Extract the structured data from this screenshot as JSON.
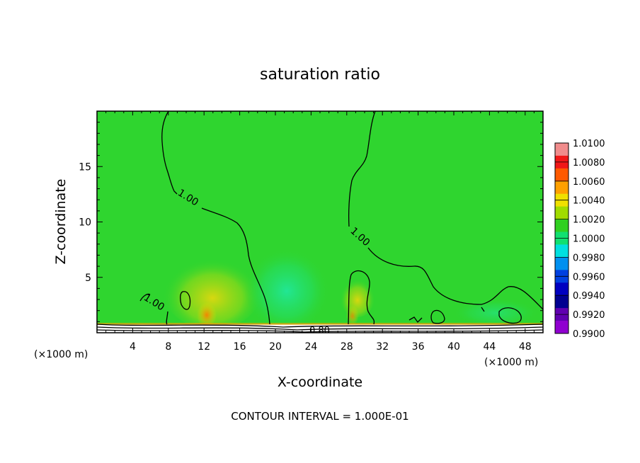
{
  "chart_data": {
    "type": "heatmap",
    "title": "saturation ratio",
    "xlabel": "X-coordinate",
    "ylabel": "Z-coordinate",
    "x_unit_left": "(×1000 m)",
    "x_unit_right": "(×1000 m)",
    "x_ticks": [
      "4",
      "8",
      "12",
      "16",
      "20",
      "24",
      "28",
      "32",
      "36",
      "40",
      "44",
      "48"
    ],
    "y_ticks": [
      "5",
      "10",
      "15"
    ],
    "xlim": [
      0,
      50
    ],
    "ylim": [
      0,
      20
    ],
    "colorbar": {
      "labels": [
        "1.0100",
        "1.0080",
        "1.0060",
        "1.0040",
        "1.0020",
        "1.0000",
        "0.9980",
        "0.9960",
        "0.9940",
        "0.9920",
        "0.9900"
      ],
      "colors": [
        "#f08c8c",
        "#f01818",
        "#ff5a00",
        "#ffa000",
        "#f0e000",
        "#a0dc00",
        "#30d020",
        "#10e070",
        "#00e0e0",
        "#0090f0",
        "#0040e0",
        "#0000c0",
        "#000090",
        "#6000b0",
        "#9000d0"
      ]
    },
    "background_color": "#2fd52f",
    "contour_labels": [
      "1.00",
      "1.00",
      "1.00",
      "0.80"
    ],
    "footer": "CONTOUR INTERVAL = 1.000E-01"
  }
}
